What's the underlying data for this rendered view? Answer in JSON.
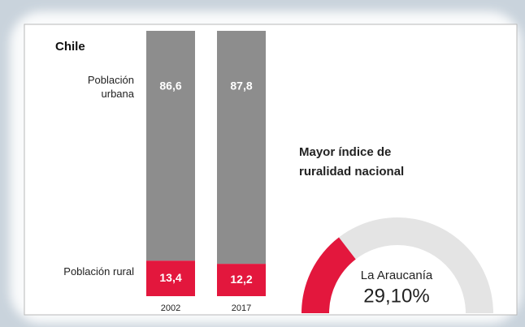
{
  "chart_data": [
    {
      "type": "stacked_bar",
      "title": "Chile",
      "categories": [
        "2002",
        "2017"
      ],
      "series": [
        {
          "name": "Población urbana",
          "color": "#8d8d8d",
          "values": [
            86.6,
            87.8
          ],
          "value_labels": [
            "86,6",
            "87,8"
          ]
        },
        {
          "name": "Población rural",
          "color": "#e3173d",
          "values": [
            13.4,
            12.2
          ],
          "value_labels": [
            "13,4",
            "12,2"
          ]
        }
      ],
      "ylim": [
        0,
        100
      ]
    },
    {
      "type": "gauge",
      "title": "Mayor índice de ruralidad nacional",
      "label": "La Araucanía",
      "value": 29.1,
      "value_label": "29,10%",
      "color": "#e3173d",
      "track_color": "#e4e4e4",
      "ylim": [
        0,
        100
      ]
    }
  ]
}
